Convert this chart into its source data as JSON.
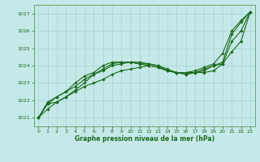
{
  "title": "Graphe pression niveau de la mer (hPa)",
  "xlim": [
    -0.5,
    23.5
  ],
  "ylim": [
    1020.5,
    1027.5
  ],
  "yticks": [
    1021,
    1022,
    1023,
    1024,
    1025,
    1026,
    1027
  ],
  "xticks": [
    0,
    1,
    2,
    3,
    4,
    5,
    6,
    7,
    8,
    9,
    10,
    11,
    12,
    13,
    14,
    15,
    16,
    17,
    18,
    19,
    20,
    21,
    22,
    23
  ],
  "bg_color": "#c5e8e8",
  "grid_color": "#a8d4d4",
  "line_color": "#1a6b1a",
  "series": [
    [
      1021.0,
      1021.5,
      1021.9,
      1022.2,
      1022.5,
      1022.8,
      1023.0,
      1023.2,
      1023.5,
      1023.7,
      1023.8,
      1023.9,
      1024.0,
      1023.9,
      1023.7,
      1023.6,
      1023.6,
      1023.6,
      1023.6,
      1023.7,
      1024.1,
      1024.8,
      1025.4,
      1027.1
    ],
    [
      1021.0,
      1021.8,
      1021.9,
      1022.2,
      1022.6,
      1023.0,
      1023.5,
      1023.7,
      1024.0,
      1024.1,
      1024.2,
      1024.1,
      1024.0,
      1023.9,
      1023.7,
      1023.6,
      1023.5,
      1023.6,
      1023.7,
      1024.0,
      1024.1,
      1025.4,
      1026.0,
      1027.1
    ],
    [
      1021.0,
      1021.8,
      1022.2,
      1022.5,
      1022.8,
      1023.2,
      1023.5,
      1023.8,
      1024.1,
      1024.2,
      1024.2,
      1024.1,
      1024.1,
      1024.0,
      1023.7,
      1023.6,
      1023.5,
      1023.6,
      1023.8,
      1024.0,
      1024.2,
      1025.8,
      1026.5,
      1027.1
    ],
    [
      1021.0,
      1021.9,
      1022.2,
      1022.5,
      1023.0,
      1023.4,
      1023.6,
      1024.0,
      1024.2,
      1024.2,
      1024.2,
      1024.2,
      1024.1,
      1024.0,
      1023.8,
      1023.6,
      1023.6,
      1023.7,
      1023.9,
      1024.1,
      1024.7,
      1026.0,
      1026.6,
      1027.1
    ]
  ]
}
